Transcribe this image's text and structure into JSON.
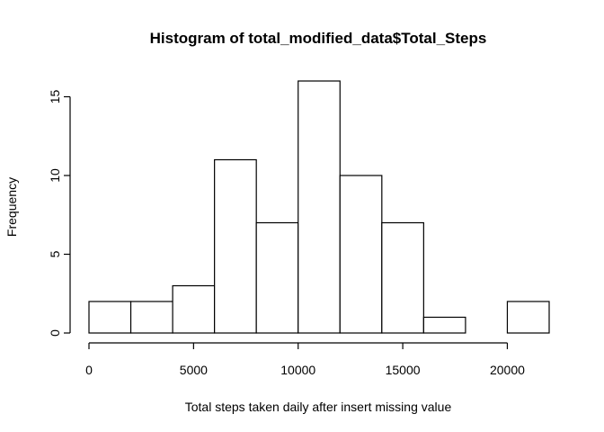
{
  "chart_data": {
    "type": "bar",
    "subtype": "histogram",
    "title": "Histogram of total_modified_data$Total_Steps",
    "xlabel": "Total steps taken daily after insert missing value",
    "ylabel": "Frequency",
    "bins": [
      {
        "from": 0,
        "to": 2000,
        "count": 2
      },
      {
        "from": 2000,
        "to": 4000,
        "count": 2
      },
      {
        "from": 4000,
        "to": 6000,
        "count": 3
      },
      {
        "from": 6000,
        "to": 8000,
        "count": 11
      },
      {
        "from": 8000,
        "to": 10000,
        "count": 7
      },
      {
        "from": 10000,
        "to": 12000,
        "count": 16
      },
      {
        "from": 12000,
        "to": 14000,
        "count": 10
      },
      {
        "from": 14000,
        "to": 16000,
        "count": 7
      },
      {
        "from": 16000,
        "to": 18000,
        "count": 1
      },
      {
        "from": 18000,
        "to": 20000,
        "count": 0
      },
      {
        "from": 20000,
        "to": 22000,
        "count": 2
      }
    ],
    "xticks": [
      0,
      5000,
      10000,
      15000,
      20000
    ],
    "yticks": [
      0,
      5,
      10,
      15
    ],
    "xlim": [
      0,
      22000
    ],
    "ylim": [
      0,
      16
    ],
    "grid": false,
    "legend": "none",
    "bar_fill": "#ffffff",
    "bar_stroke": "#000000"
  }
}
